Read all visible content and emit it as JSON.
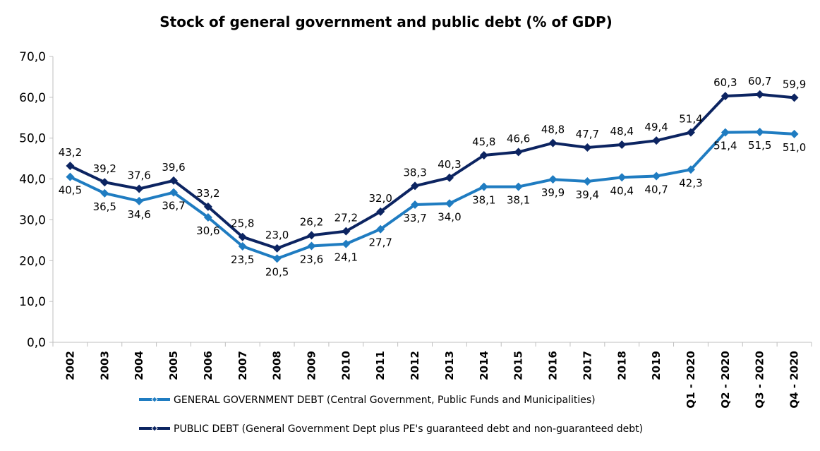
{
  "chart_data": {
    "type": "line",
    "title": "Stock of general government and public debt (% of GDP)",
    "xlabel": "",
    "ylabel": "",
    "ylim": [
      0,
      70
    ],
    "yticks": [
      "0,0",
      "10,0",
      "20,0",
      "30,0",
      "40,0",
      "50,0",
      "60,0",
      "70,0"
    ],
    "grid": false,
    "legend_position": "bottom",
    "categories": [
      "2002",
      "2003",
      "2004",
      "2005",
      "2006",
      "2007",
      "2008",
      "2009",
      "2010",
      "2011",
      "2012",
      "2013",
      "2014",
      "2015",
      "2016",
      "2017",
      "2018",
      "2019",
      "Q1 - 2020",
      "Q2 - 2020",
      "Q3 - 2020",
      "Q4 - 2020"
    ],
    "series": [
      {
        "name": "GENERAL GOVERNMENT DEBT (Central Government, Public Funds and Municipalities)",
        "color": "#1f7cc1",
        "values": [
          40.5,
          36.5,
          34.6,
          36.7,
          30.6,
          23.5,
          20.5,
          23.6,
          24.1,
          27.7,
          33.7,
          34.0,
          38.1,
          38.1,
          39.9,
          39.4,
          40.4,
          40.7,
          42.3,
          51.4,
          51.5,
          51.0
        ],
        "labels": [
          "40,5",
          "36,5",
          "34,6",
          "36,7",
          "30,6",
          "23,5",
          "20,5",
          "23,6",
          "24,1",
          "27,7",
          "33,7",
          "34,0",
          "38,1",
          "38,1",
          "39,9",
          "39,4",
          "40,4",
          "40,7",
          "42,3",
          "51,4",
          "51,5",
          "51,0"
        ]
      },
      {
        "name": "PUBLIC DEBT (General Government Dept plus PE's guaranteed debt and non-guaranteed debt)",
        "color": "#0c2461",
        "values": [
          43.2,
          39.2,
          37.6,
          39.6,
          33.2,
          25.8,
          23.0,
          26.2,
          27.2,
          32.0,
          38.3,
          40.3,
          45.8,
          46.6,
          48.8,
          47.7,
          48.4,
          49.4,
          51.4,
          60.3,
          60.7,
          59.9
        ],
        "labels": [
          "43,2",
          "39,2",
          "37,6",
          "39,6",
          "33,2",
          "25,8",
          "23,0",
          "26,2",
          "27,2",
          "32,0",
          "38,3",
          "40,3",
          "45,8",
          "46,6",
          "48,8",
          "47,7",
          "48,4",
          "49,4",
          "51,4",
          "60,3",
          "60,7",
          "59,9"
        ]
      }
    ]
  }
}
